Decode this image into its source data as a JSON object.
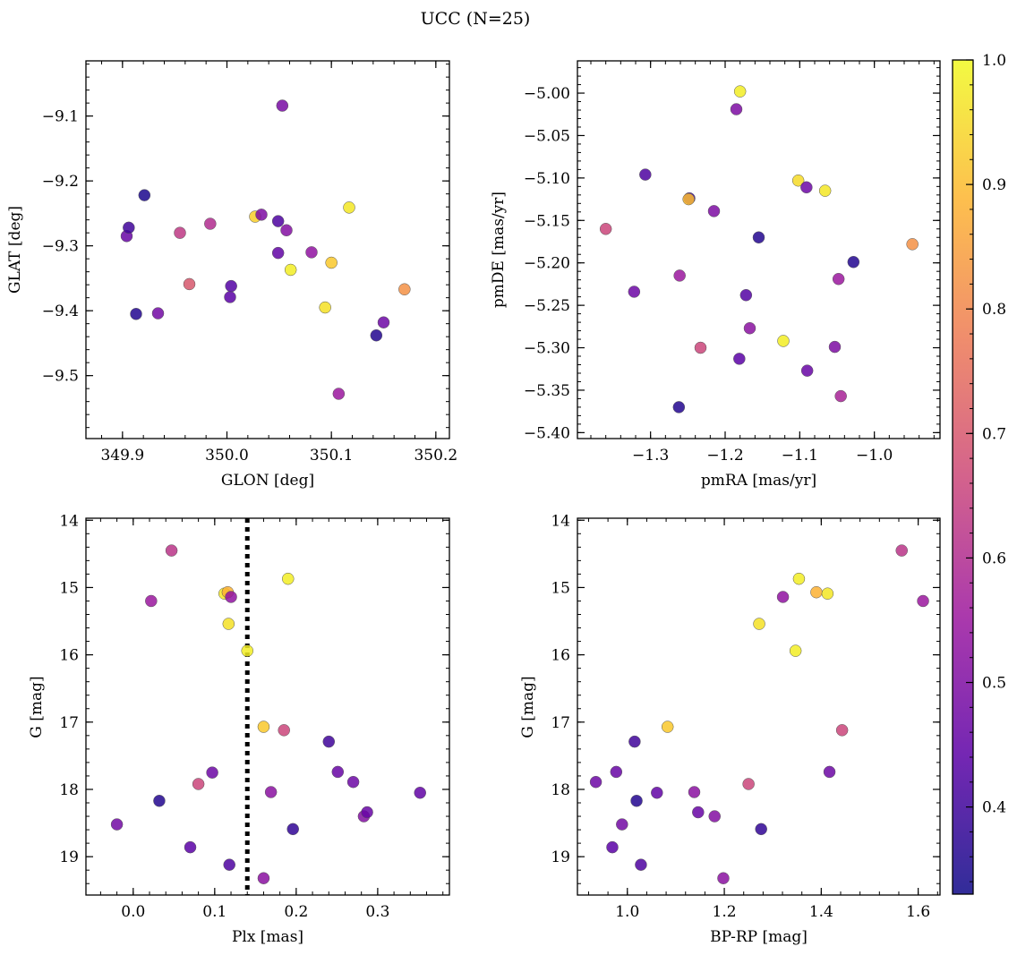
{
  "figure": {
    "title": "UCC (N=25)"
  },
  "colorbar": {
    "cmap_colors": [
      "#0d0887",
      "#5c01a6",
      "#9c179e",
      "#cc4778",
      "#ed7953",
      "#fdb42f",
      "#f0f921"
    ],
    "vmin": 0.33,
    "vmax": 1.0,
    "ticks": [
      0.4,
      0.5,
      0.6,
      0.7,
      0.8,
      0.9,
      1.0
    ],
    "tick_labels": [
      "0.4",
      "0.5",
      "0.6",
      "0.7",
      "0.8",
      "0.9",
      "1.0"
    ]
  },
  "chart_data": [
    {
      "type": "scatter",
      "title": "",
      "xlabel": "GLON [deg]",
      "ylabel": "GLAT [deg]",
      "xlim": [
        349.865,
        350.213
      ],
      "ylim": [
        -9.597,
        -9.015
      ],
      "yinvert": false,
      "xticks": [
        349.9,
        350.0,
        350.1,
        350.2
      ],
      "xtick_labels": [
        "349.9",
        "350.0",
        "350.1",
        "350.2"
      ],
      "yticks": [
        -9.1,
        -9.2,
        -9.3,
        -9.4,
        -9.5
      ],
      "ytick_labels": [
        "−9.1",
        "−9.2",
        "−9.3",
        "−9.4",
        "−9.5"
      ],
      "points": [
        {
          "x": 349.904,
          "y": -9.285,
          "c": 0.46
        },
        {
          "x": 349.906,
          "y": -9.272,
          "c": 0.4
        },
        {
          "x": 349.913,
          "y": -9.405,
          "c": 0.36
        },
        {
          "x": 349.921,
          "y": -9.222,
          "c": 0.35
        },
        {
          "x": 349.934,
          "y": -9.404,
          "c": 0.48
        },
        {
          "x": 349.955,
          "y": -9.28,
          "c": 0.63
        },
        {
          "x": 349.964,
          "y": -9.359,
          "c": 0.7
        },
        {
          "x": 349.984,
          "y": -9.266,
          "c": 0.6
        },
        {
          "x": 350.003,
          "y": -9.379,
          "c": 0.44
        },
        {
          "x": 350.004,
          "y": -9.362,
          "c": 0.43
        },
        {
          "x": 350.027,
          "y": -9.255,
          "c": 0.93
        },
        {
          "x": 350.033,
          "y": -9.252,
          "c": 0.5
        },
        {
          "x": 350.049,
          "y": -9.262,
          "c": 0.42
        },
        {
          "x": 350.049,
          "y": -9.311,
          "c": 0.45
        },
        {
          "x": 350.053,
          "y": -9.084,
          "c": 0.49
        },
        {
          "x": 350.057,
          "y": -9.276,
          "c": 0.51
        },
        {
          "x": 350.061,
          "y": -9.337,
          "c": 0.98
        },
        {
          "x": 350.081,
          "y": -9.31,
          "c": 0.53
        },
        {
          "x": 350.094,
          "y": -9.395,
          "c": 0.96
        },
        {
          "x": 350.1,
          "y": -9.326,
          "c": 0.92
        },
        {
          "x": 350.107,
          "y": -9.528,
          "c": 0.55
        },
        {
          "x": 350.117,
          "y": -9.241,
          "c": 0.97
        },
        {
          "x": 350.143,
          "y": -9.438,
          "c": 0.36
        },
        {
          "x": 350.15,
          "y": -9.418,
          "c": 0.47
        },
        {
          "x": 350.17,
          "y": -9.367,
          "c": 0.82
        }
      ]
    },
    {
      "type": "scatter",
      "title": "",
      "xlabel": "pmRA [mas/yr]",
      "ylabel": "pmDE [mas/yr]",
      "xlim": [
        -1.398,
        -0.912
      ],
      "ylim": [
        -5.407,
        -4.962
      ],
      "yinvert": false,
      "xticks": [
        -1.3,
        -1.2,
        -1.1,
        -1.0
      ],
      "xtick_labels": [
        "−1.3",
        "−1.2",
        "−1.1",
        "−1.0"
      ],
      "yticks": [
        -5.0,
        -5.05,
        -5.1,
        -5.15,
        -5.2,
        -5.25,
        -5.3,
        -5.35,
        -5.4
      ],
      "ytick_labels": [
        "−5.00",
        "−5.05",
        "−5.10",
        "−5.15",
        "−5.20",
        "−5.25",
        "−5.30",
        "−5.35",
        "−5.40"
      ],
      "points": [
        {
          "x": -1.36,
          "y": -5.16,
          "c": 0.66
        },
        {
          "x": -1.322,
          "y": -5.234,
          "c": 0.47
        },
        {
          "x": -1.307,
          "y": -5.096,
          "c": 0.42
        },
        {
          "x": -1.262,
          "y": -5.37,
          "c": 0.36
        },
        {
          "x": -1.261,
          "y": -5.215,
          "c": 0.55
        },
        {
          "x": -1.248,
          "y": -5.124,
          "c": 0.4
        },
        {
          "x": -1.249,
          "y": -5.125,
          "c": 0.9
        },
        {
          "x": -1.233,
          "y": -5.3,
          "c": 0.66
        },
        {
          "x": -1.215,
          "y": -5.139,
          "c": 0.5
        },
        {
          "x": -1.185,
          "y": -5.019,
          "c": 0.5
        },
        {
          "x": -1.181,
          "y": -5.313,
          "c": 0.44
        },
        {
          "x": -1.18,
          "y": -4.998,
          "c": 0.98
        },
        {
          "x": -1.172,
          "y": -5.238,
          "c": 0.43
        },
        {
          "x": -1.167,
          "y": -5.277,
          "c": 0.52
        },
        {
          "x": -1.155,
          "y": -5.17,
          "c": 0.36
        },
        {
          "x": -1.122,
          "y": -5.292,
          "c": 0.98
        },
        {
          "x": -1.102,
          "y": -5.103,
          "c": 0.95
        },
        {
          "x": -1.091,
          "y": -5.111,
          "c": 0.47
        },
        {
          "x": -1.09,
          "y": -5.327,
          "c": 0.46
        },
        {
          "x": -1.066,
          "y": -5.115,
          "c": 0.97
        },
        {
          "x": -1.053,
          "y": -5.299,
          "c": 0.5
        },
        {
          "x": -1.048,
          "y": -5.219,
          "c": 0.55
        },
        {
          "x": -1.045,
          "y": -5.357,
          "c": 0.58
        },
        {
          "x": -1.028,
          "y": -5.199,
          "c": 0.36
        },
        {
          "x": -0.949,
          "y": -5.178,
          "c": 0.82
        }
      ]
    },
    {
      "type": "scatter",
      "title": "",
      "xlabel": "Plx [mas]",
      "ylabel": "G [mag]",
      "xlim": [
        -0.058,
        0.388
      ],
      "ylim": [
        19.57,
        13.97
      ],
      "yinvert": true,
      "xticks": [
        0.0,
        0.1,
        0.2,
        0.3
      ],
      "xtick_labels": [
        "0.0",
        "0.1",
        "0.2",
        "0.3"
      ],
      "yticks": [
        14,
        15,
        16,
        17,
        18,
        19
      ],
      "ytick_labels": [
        "14",
        "15",
        "16",
        "17",
        "18",
        "19"
      ],
      "vline": {
        "x": 0.14
      },
      "points": [
        {
          "x": -0.02,
          "y": 18.52,
          "c": 0.48
        },
        {
          "x": 0.022,
          "y": 15.2,
          "c": 0.55
        },
        {
          "x": 0.032,
          "y": 18.17,
          "c": 0.36
        },
        {
          "x": 0.047,
          "y": 14.45,
          "c": 0.62
        },
        {
          "x": 0.07,
          "y": 18.86,
          "c": 0.44
        },
        {
          "x": 0.08,
          "y": 17.92,
          "c": 0.66
        },
        {
          "x": 0.097,
          "y": 17.75,
          "c": 0.47
        },
        {
          "x": 0.112,
          "y": 15.09,
          "c": 0.97
        },
        {
          "x": 0.116,
          "y": 15.07,
          "c": 0.88
        },
        {
          "x": 0.117,
          "y": 15.54,
          "c": 0.96
        },
        {
          "x": 0.118,
          "y": 19.12,
          "c": 0.42
        },
        {
          "x": 0.12,
          "y": 15.14,
          "c": 0.53
        },
        {
          "x": 0.14,
          "y": 15.94,
          "c": 0.98
        },
        {
          "x": 0.16,
          "y": 17.07,
          "c": 0.92
        },
        {
          "x": 0.16,
          "y": 19.32,
          "c": 0.52
        },
        {
          "x": 0.169,
          "y": 18.04,
          "c": 0.52
        },
        {
          "x": 0.185,
          "y": 17.12,
          "c": 0.66
        },
        {
          "x": 0.19,
          "y": 14.87,
          "c": 0.98
        },
        {
          "x": 0.196,
          "y": 18.59,
          "c": 0.38
        },
        {
          "x": 0.24,
          "y": 17.29,
          "c": 0.4
        },
        {
          "x": 0.251,
          "y": 17.74,
          "c": 0.46
        },
        {
          "x": 0.27,
          "y": 17.89,
          "c": 0.47
        },
        {
          "x": 0.283,
          "y": 18.4,
          "c": 0.51
        },
        {
          "x": 0.287,
          "y": 18.34,
          "c": 0.46
        },
        {
          "x": 0.352,
          "y": 18.05,
          "c": 0.45
        }
      ]
    },
    {
      "type": "scatter",
      "title": "",
      "xlabel": "BP-RP [mag]",
      "ylabel": "G [mag]",
      "xlim": [
        0.897,
        1.645
      ],
      "ylim": [
        19.57,
        13.97
      ],
      "yinvert": true,
      "xticks": [
        1.0,
        1.2,
        1.4,
        1.6
      ],
      "xtick_labels": [
        "1.0",
        "1.2",
        "1.4",
        "1.6"
      ],
      "yticks": [
        14,
        15,
        16,
        17,
        18,
        19
      ],
      "ytick_labels": [
        "14",
        "15",
        "16",
        "17",
        "18",
        "19"
      ],
      "points": [
        {
          "x": 0.935,
          "y": 17.89,
          "c": 0.47
        },
        {
          "x": 0.969,
          "y": 18.86,
          "c": 0.44
        },
        {
          "x": 0.977,
          "y": 17.74,
          "c": 0.46
        },
        {
          "x": 0.989,
          "y": 18.52,
          "c": 0.48
        },
        {
          "x": 1.015,
          "y": 17.29,
          "c": 0.4
        },
        {
          "x": 1.019,
          "y": 18.17,
          "c": 0.36
        },
        {
          "x": 1.028,
          "y": 19.12,
          "c": 0.42
        },
        {
          "x": 1.061,
          "y": 18.05,
          "c": 0.45
        },
        {
          "x": 1.083,
          "y": 17.07,
          "c": 0.92
        },
        {
          "x": 1.138,
          "y": 18.04,
          "c": 0.52
        },
        {
          "x": 1.146,
          "y": 18.34,
          "c": 0.46
        },
        {
          "x": 1.18,
          "y": 18.4,
          "c": 0.51
        },
        {
          "x": 1.198,
          "y": 19.32,
          "c": 0.52
        },
        {
          "x": 1.25,
          "y": 17.92,
          "c": 0.66
        },
        {
          "x": 1.272,
          "y": 15.54,
          "c": 0.96
        },
        {
          "x": 1.276,
          "y": 18.59,
          "c": 0.38
        },
        {
          "x": 1.321,
          "y": 15.14,
          "c": 0.53
        },
        {
          "x": 1.347,
          "y": 15.94,
          "c": 0.98
        },
        {
          "x": 1.354,
          "y": 14.87,
          "c": 0.98
        },
        {
          "x": 1.39,
          "y": 15.07,
          "c": 0.88
        },
        {
          "x": 1.413,
          "y": 15.09,
          "c": 0.97
        },
        {
          "x": 1.417,
          "y": 17.74,
          "c": 0.47
        },
        {
          "x": 1.443,
          "y": 17.12,
          "c": 0.66
        },
        {
          "x": 1.566,
          "y": 14.45,
          "c": 0.62
        },
        {
          "x": 1.61,
          "y": 15.2,
          "c": 0.55
        }
      ]
    }
  ]
}
